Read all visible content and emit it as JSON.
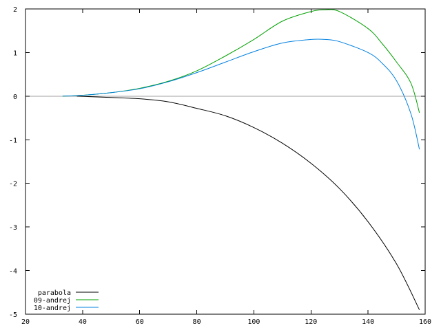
{
  "chart_data": {
    "type": "line",
    "title": "",
    "xlabel": "",
    "ylabel": "",
    "xlim": [
      20,
      160
    ],
    "ylim": [
      -5,
      2
    ],
    "x_ticks": [
      20,
      40,
      60,
      80,
      100,
      120,
      140,
      160
    ],
    "y_ticks": [
      -5,
      -4,
      -3,
      -2,
      -1,
      0,
      1,
      2
    ],
    "x_tick_labels": [
      "20",
      "40",
      "60",
      "80",
      "100",
      "120",
      "140",
      "160"
    ],
    "y_tick_labels": [
      "-5",
      "-4",
      "-3",
      "-2",
      "-1",
      "0",
      "1",
      "2"
    ],
    "zero_line": true,
    "grid": false,
    "legend_position": "bottom-left",
    "series": [
      {
        "name": "parabola",
        "color": "#000000",
        "x": [
          38,
          50,
          60,
          70,
          80,
          90,
          100,
          110,
          120,
          130,
          140,
          150,
          158
        ],
        "y": [
          0.0,
          -0.03,
          -0.06,
          -0.13,
          -0.28,
          -0.45,
          -0.72,
          -1.08,
          -1.54,
          -2.12,
          -2.88,
          -3.85,
          -4.9
        ]
      },
      {
        "name": "09-andrej",
        "color": "#00a000",
        "x": [
          33,
          40,
          50,
          60,
          70,
          80,
          90,
          100,
          110,
          120,
          125,
          130,
          140,
          145,
          150,
          155,
          158
        ],
        "y": [
          0.0,
          0.02,
          0.08,
          0.18,
          0.34,
          0.58,
          0.92,
          1.3,
          1.72,
          1.94,
          1.98,
          1.94,
          1.55,
          1.2,
          0.78,
          0.3,
          -0.38
        ]
      },
      {
        "name": "10-andrej",
        "color": "#0080e0",
        "x": [
          33,
          40,
          50,
          60,
          70,
          80,
          90,
          100,
          110,
          120,
          125,
          130,
          140,
          145,
          150,
          155,
          158
        ],
        "y": [
          0.0,
          0.02,
          0.08,
          0.17,
          0.33,
          0.54,
          0.78,
          1.02,
          1.22,
          1.3,
          1.3,
          1.25,
          1.0,
          0.75,
          0.35,
          -0.4,
          -1.22
        ]
      }
    ]
  }
}
